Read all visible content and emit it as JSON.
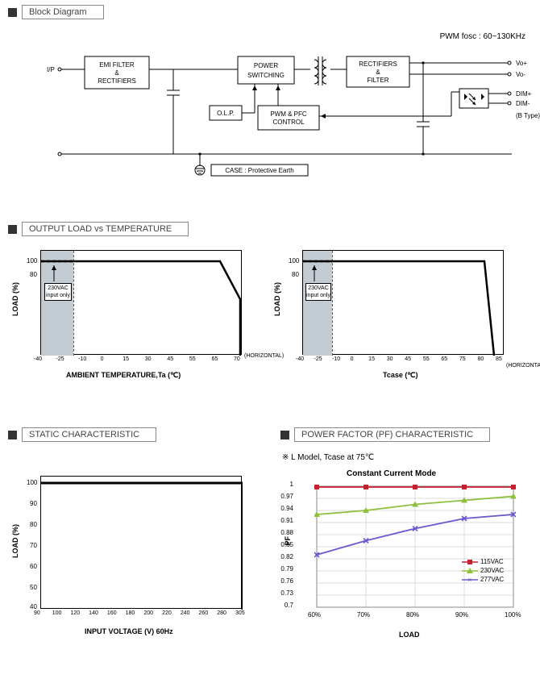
{
  "block_diagram": {
    "title": "Block Diagram",
    "note": "PWM fosc : 60~130KHz",
    "ip_label": "I/P",
    "emi": "EMI FILTER\n&\nRECTIFIERS",
    "power_sw": "POWER\nSWITCHING",
    "rect": "RECTIFIERS\n&\nFILTER",
    "olp": "O.L.P.",
    "pwm": "PWM & PFC\nCONTROL",
    "case": "CASE : Protective Earth",
    "vo_plus": "Vo+",
    "vo_minus": "Vo-",
    "dim_plus": "DIM+",
    "dim_minus": "DIM-",
    "btype": "(B Type)"
  },
  "load_temp": {
    "title": "OUTPUT LOAD vs TEMPERATURE",
    "ylabel": "LOAD (%)",
    "chart_a": {
      "xlabel": "AMBIENT TEMPERATURE,Ta (℃)",
      "xticks": [
        "-40",
        "-25",
        "-10",
        "0",
        "15",
        "30",
        "45",
        "55",
        "65",
        "70"
      ],
      "yticks": [
        "100",
        "80"
      ],
      "shade_note": "230VAC\ninput only",
      "horiz": "(HORIZONTAL)"
    },
    "chart_b": {
      "xlabel": "Tcase (℃)",
      "xticks": [
        "-40",
        "-25",
        "-10",
        "0",
        "15",
        "30",
        "45",
        "55",
        "65",
        "75",
        "80",
        "85"
      ],
      "yticks": [
        "100",
        "80"
      ],
      "shade_note": "230VAC\ninput only",
      "horiz": "(HORIZONTAL)"
    }
  },
  "static": {
    "title": "STATIC CHARACTERISTIC",
    "ylabel": "LOAD (%)",
    "xlabel": "INPUT VOLTAGE (V) 60Hz",
    "xticks": [
      "90",
      "100",
      "120",
      "140",
      "160",
      "180",
      "200",
      "220",
      "240",
      "260",
      "280",
      "305"
    ],
    "yticks": [
      "100",
      "90",
      "80",
      "70",
      "60",
      "50",
      "40"
    ]
  },
  "pf": {
    "title": "POWER FACTOR (PF) CHARACTERISTIC",
    "note": "※ L Model, Tcase at 75℃",
    "subtitle": "Constant Current Mode",
    "ylabel": "PF",
    "xlabel": "LOAD",
    "xticks": [
      "60%",
      "70%",
      "80%",
      "90%",
      "100%"
    ],
    "yticks": [
      "1",
      "0.97",
      "0.94",
      "0.91",
      "0.88",
      "0.85",
      "0.82",
      "0.79",
      "0.76",
      "0.73",
      "0.7"
    ],
    "series": [
      {
        "name": "115VAC",
        "color": "#c8202f",
        "marker": "square",
        "y": [
          0.998,
          0.998,
          0.998,
          0.998,
          0.998
        ]
      },
      {
        "name": "230VAC",
        "color": "#8fbf3f",
        "marker": "triangle",
        "y": [
          0.93,
          0.94,
          0.955,
          0.965,
          0.975
        ]
      },
      {
        "name": "277VAC",
        "color": "#6a5acd",
        "marker": "x",
        "y": [
          0.83,
          0.865,
          0.895,
          0.92,
          0.93
        ]
      }
    ]
  }
}
